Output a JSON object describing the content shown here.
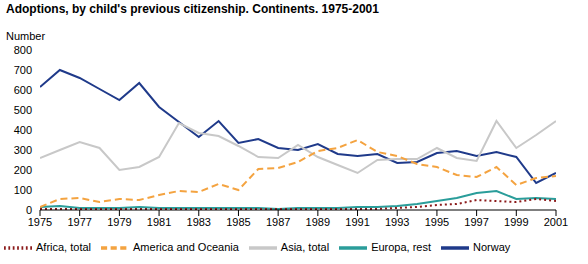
{
  "chart_data": {
    "type": "line",
    "title": "Adoptions, by child's previous citizenship. Continents. 1975-2001",
    "y_label": "Number",
    "x": [
      1975,
      1976,
      1977,
      1978,
      1979,
      1980,
      1981,
      1982,
      1983,
      1984,
      1985,
      1986,
      1987,
      1988,
      1989,
      1990,
      1991,
      1992,
      1993,
      1994,
      1995,
      1996,
      1997,
      1998,
      1999,
      2000,
      2001
    ],
    "xlim": [
      1975,
      2001
    ],
    "xticks": [
      1975,
      1977,
      1979,
      1981,
      1983,
      1985,
      1987,
      1989,
      1991,
      1993,
      1995,
      1997,
      1999,
      2001
    ],
    "ylim": [
      0,
      800
    ],
    "yticks": [
      0,
      100,
      200,
      300,
      400,
      500,
      600,
      700,
      800
    ],
    "grid": false,
    "legend": "bottom",
    "series": [
      {
        "name": "Norway",
        "color": "#1f3a8a",
        "line_style": "solid",
        "values": [
          615,
          700,
          660,
          605,
          550,
          635,
          515,
          440,
          365,
          445,
          335,
          355,
          310,
          300,
          330,
          280,
          270,
          280,
          235,
          240,
          285,
          295,
          270,
          290,
          265,
          135,
          185
        ]
      },
      {
        "name": "Europa, rest",
        "color": "#2a9d9a",
        "line_style": "solid",
        "values": [
          15,
          20,
          10,
          10,
          10,
          15,
          10,
          10,
          10,
          10,
          10,
          10,
          5,
          10,
          10,
          10,
          15,
          15,
          20,
          30,
          45,
          60,
          85,
          95,
          55,
          60,
          55
        ]
      },
      {
        "name": "Africa, total",
        "color": "#8b1a1a",
        "line_style": "dotted",
        "values": [
          5,
          5,
          5,
          5,
          5,
          5,
          5,
          5,
          5,
          5,
          5,
          5,
          5,
          5,
          5,
          5,
          5,
          5,
          10,
          15,
          25,
          30,
          50,
          45,
          40,
          55,
          45
        ]
      },
      {
        "name": "Asia, total",
        "color": "#c8c8c8",
        "line_style": "solid",
        "values": [
          260,
          300,
          340,
          310,
          200,
          215,
          265,
          435,
          385,
          370,
          320,
          265,
          260,
          325,
          265,
          225,
          185,
          250,
          255,
          255,
          310,
          260,
          245,
          445,
          310,
          375,
          445
        ]
      },
      {
        "name": "America and Oceania",
        "color": "#f4a340",
        "line_style": "dashed",
        "values": [
          15,
          55,
          60,
          40,
          55,
          50,
          75,
          95,
          90,
          130,
          100,
          205,
          210,
          240,
          295,
          310,
          350,
          290,
          270,
          230,
          215,
          175,
          165,
          215,
          125,
          160,
          170
        ]
      }
    ]
  }
}
